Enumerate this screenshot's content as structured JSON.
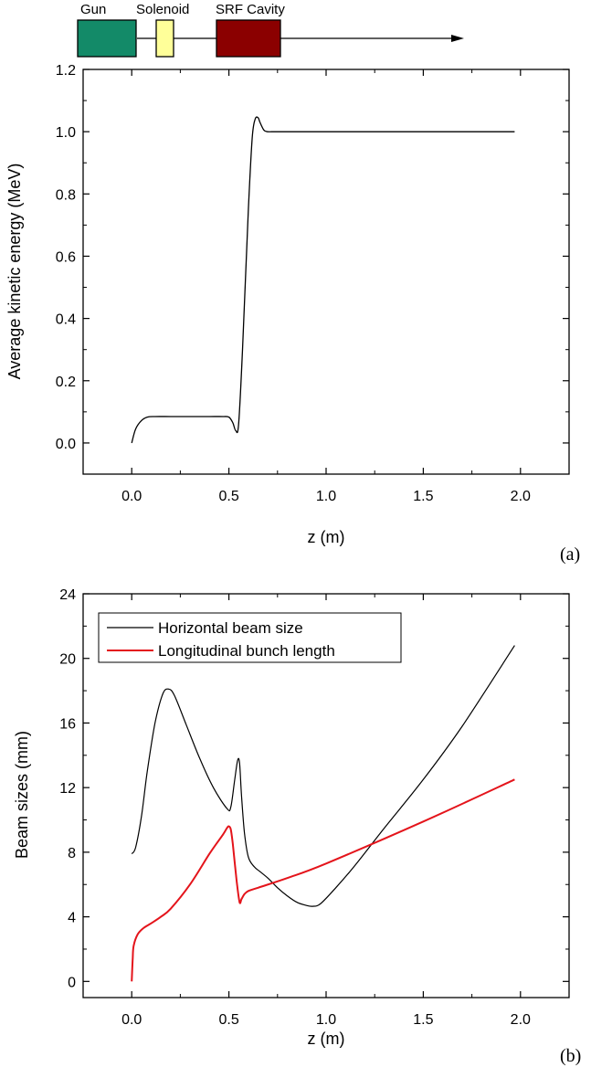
{
  "beamline": {
    "components": [
      {
        "label": "Gun",
        "color": "#138a68"
      },
      {
        "label": "Solenoid",
        "color": "#ffff99"
      },
      {
        "label": "SRF Cavity",
        "color": "#8b0000"
      }
    ]
  },
  "chart_data": [
    {
      "type": "line",
      "panel_label": "(a)",
      "xlabel": "z (m)",
      "ylabel": "Average kinetic energy (MeV)",
      "xlim": [
        -0.25,
        2.25
      ],
      "ylim": [
        -0.1,
        1.2
      ],
      "xticks": [
        0.0,
        0.5,
        1.0,
        1.5,
        2.0
      ],
      "xtick_labels": [
        "0.0",
        "0.5",
        "1.0",
        "1.5",
        "2.0"
      ],
      "yticks": [
        0.0,
        0.2,
        0.4,
        0.6,
        0.8,
        1.0,
        1.2
      ],
      "ytick_labels": [
        "0.0",
        "0.2",
        "0.4",
        "0.6",
        "0.8",
        "1.0",
        "1.2"
      ],
      "grid": false,
      "series": [
        {
          "color": "#000000",
          "x": [
            0.0,
            0.02,
            0.05,
            0.08,
            0.12,
            0.2,
            0.3,
            0.4,
            0.47,
            0.5,
            0.52,
            0.535,
            0.55,
            0.57,
            0.6,
            0.62,
            0.635,
            0.65,
            0.66,
            0.68,
            0.7,
            0.72,
            0.75,
            1.0,
            1.5,
            1.97
          ],
          "values": [
            0.0,
            0.045,
            0.072,
            0.083,
            0.085,
            0.085,
            0.085,
            0.085,
            0.085,
            0.083,
            0.065,
            0.04,
            0.06,
            0.3,
            0.75,
            0.98,
            1.04,
            1.045,
            1.03,
            1.005,
            1.0,
            1.0,
            1.0,
            1.0,
            1.0,
            1.0
          ]
        }
      ]
    },
    {
      "type": "line",
      "panel_label": "(b)",
      "xlabel": "z (m)",
      "ylabel": "Beam sizes (mm)",
      "xlim": [
        -0.25,
        2.25
      ],
      "ylim": [
        -1,
        24
      ],
      "xticks": [
        0.0,
        0.5,
        1.0,
        1.5,
        2.0
      ],
      "xtick_labels": [
        "0.0",
        "0.5",
        "1.0",
        "1.5",
        "2.0"
      ],
      "yticks": [
        0,
        4,
        8,
        12,
        16,
        20,
        24
      ],
      "ytick_labels": [
        "0",
        "4",
        "8",
        "12",
        "16",
        "20",
        "24"
      ],
      "grid": false,
      "legend": "top-left",
      "series": [
        {
          "name": "Horizontal beam size",
          "color": "#000000",
          "x": [
            0.0,
            0.02,
            0.05,
            0.08,
            0.12,
            0.16,
            0.19,
            0.22,
            0.28,
            0.35,
            0.42,
            0.49,
            0.51,
            0.53,
            0.545,
            0.555,
            0.565,
            0.58,
            0.6,
            0.63,
            0.66,
            0.7,
            0.75,
            0.8,
            0.85,
            0.9,
            0.93,
            0.97,
            1.05,
            1.15,
            1.3,
            1.5,
            1.7,
            1.97
          ],
          "values": [
            7.9,
            8.3,
            10.2,
            13.0,
            16.0,
            17.8,
            18.1,
            17.7,
            15.9,
            13.8,
            12.0,
            10.7,
            10.8,
            12.5,
            13.7,
            13.5,
            11.5,
            9.2,
            7.7,
            7.1,
            6.8,
            6.4,
            5.8,
            5.3,
            4.9,
            4.7,
            4.65,
            4.8,
            5.8,
            7.2,
            9.5,
            12.5,
            15.8,
            20.8
          ]
        },
        {
          "name": "Longitudinal bunch length",
          "color": "#e4141b",
          "x": [
            0.0,
            0.005,
            0.01,
            0.03,
            0.06,
            0.1,
            0.15,
            0.2,
            0.3,
            0.4,
            0.47,
            0.49,
            0.5,
            0.51,
            0.52,
            0.54,
            0.555,
            0.565,
            0.58,
            0.6,
            0.65,
            0.8,
            1.0,
            1.5,
            1.97
          ],
          "values": [
            0.0,
            1.4,
            2.2,
            2.9,
            3.3,
            3.6,
            4.0,
            4.5,
            6.0,
            7.9,
            9.1,
            9.5,
            9.6,
            9.4,
            8.5,
            6.2,
            4.9,
            5.1,
            5.4,
            5.6,
            5.8,
            6.4,
            7.3,
            9.9,
            12.5
          ]
        }
      ]
    }
  ]
}
